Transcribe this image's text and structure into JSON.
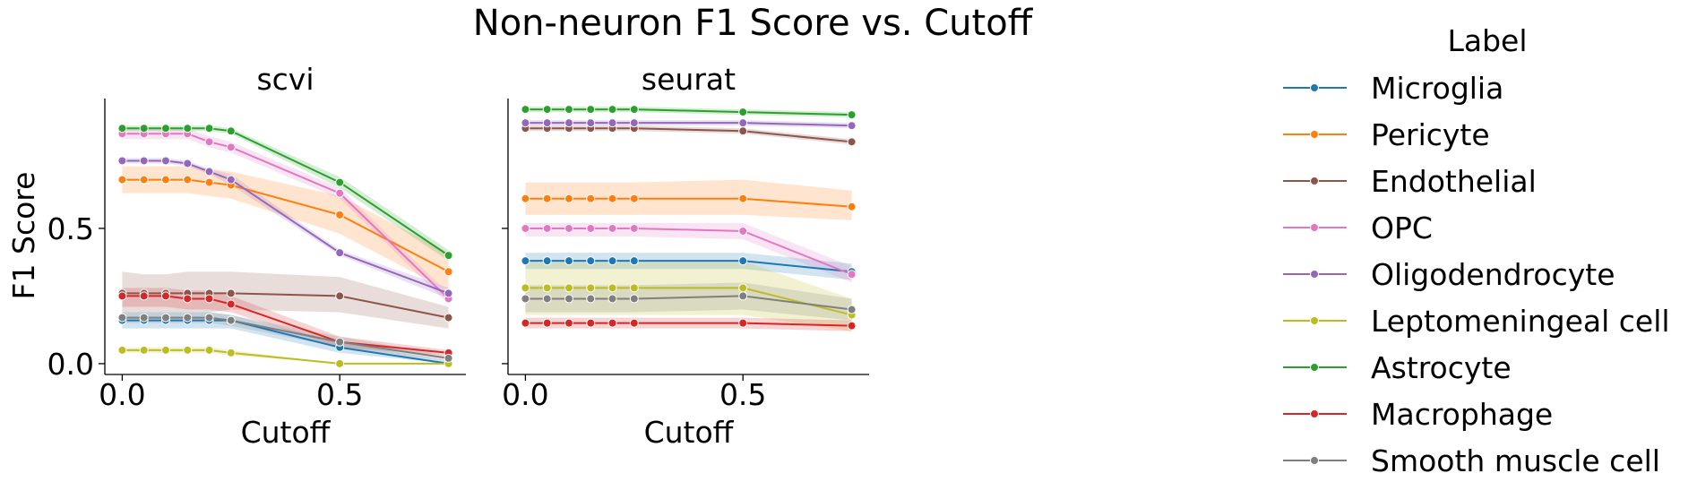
{
  "chart_data": {
    "type": "line",
    "title": "Non-neuron F1 Score vs. Cutoff",
    "ylabel": "F1 Score",
    "xlabel": "Cutoff",
    "xlim": [
      -0.04,
      0.79
    ],
    "ylim": [
      -0.04,
      0.98
    ],
    "xticks": [
      0.0,
      0.5
    ],
    "xtick_labels": [
      "0.0",
      "0.5"
    ],
    "yticks": [
      0.0,
      0.5
    ],
    "ytick_labels": [
      "0.0",
      "0.5"
    ],
    "legend": {
      "title": "Label",
      "placement": "right"
    },
    "series_colors": {
      "Microglia": "#1f77b4",
      "Pericyte": "#ff7f0e",
      "Endothelial": "#8c564b",
      "OPC": "#e377c2",
      "Oligodendrocyte": "#9467bd",
      "Leptomeningeal cell": "#bcbd22",
      "Astrocyte": "#2ca02c",
      "Macrophage": "#d62728",
      "Smooth muscle cell": "#7f7f7f"
    },
    "panels": [
      {
        "title": "scvi",
        "x": [
          0.0,
          0.05,
          0.1,
          0.15,
          0.2,
          0.25,
          0.5,
          0.75
        ],
        "series": [
          {
            "name": "Microglia",
            "values": [
              0.16,
              0.16,
              0.16,
              0.16,
              0.16,
              0.16,
              0.06,
              0.0
            ],
            "ci_lower": [
              0.13,
              0.13,
              0.13,
              0.13,
              0.13,
              0.13,
              0.04,
              0.0
            ],
            "ci_upper": [
              0.19,
              0.19,
              0.19,
              0.19,
              0.19,
              0.18,
              0.08,
              0.01
            ]
          },
          {
            "name": "Pericyte",
            "values": [
              0.68,
              0.68,
              0.68,
              0.68,
              0.67,
              0.66,
              0.55,
              0.34
            ],
            "ci_lower": [
              0.63,
              0.63,
              0.63,
              0.63,
              0.62,
              0.61,
              0.48,
              0.27
            ],
            "ci_upper": [
              0.73,
              0.73,
              0.73,
              0.73,
              0.72,
              0.71,
              0.62,
              0.41
            ]
          },
          {
            "name": "Endothelial",
            "values": [
              0.26,
              0.26,
              0.26,
              0.26,
              0.26,
              0.26,
              0.25,
              0.17
            ],
            "ci_lower": [
              0.19,
              0.19,
              0.19,
              0.19,
              0.19,
              0.2,
              0.19,
              0.13
            ],
            "ci_upper": [
              0.34,
              0.33,
              0.33,
              0.34,
              0.34,
              0.34,
              0.32,
              0.21
            ]
          },
          {
            "name": "OPC",
            "values": [
              0.85,
              0.85,
              0.85,
              0.85,
              0.82,
              0.8,
              0.63,
              0.24
            ],
            "ci_lower": [
              0.83,
              0.83,
              0.83,
              0.83,
              0.8,
              0.78,
              0.61,
              0.22
            ],
            "ci_upper": [
              0.87,
              0.87,
              0.87,
              0.87,
              0.84,
              0.82,
              0.65,
              0.26
            ]
          },
          {
            "name": "Oligodendrocyte",
            "values": [
              0.75,
              0.75,
              0.75,
              0.74,
              0.71,
              0.68,
              0.41,
              0.26
            ],
            "ci_lower": [
              0.74,
              0.74,
              0.74,
              0.73,
              0.7,
              0.66,
              0.4,
              0.24
            ],
            "ci_upper": [
              0.76,
              0.76,
              0.76,
              0.75,
              0.72,
              0.7,
              0.42,
              0.28
            ]
          },
          {
            "name": "Leptomeningeal cell",
            "values": [
              0.05,
              0.05,
              0.05,
              0.05,
              0.05,
              0.04,
              0.0,
              0.0
            ],
            "ci_lower": [
              0.04,
              0.04,
              0.04,
              0.04,
              0.04,
              0.03,
              0.0,
              0.0
            ],
            "ci_upper": [
              0.06,
              0.06,
              0.06,
              0.06,
              0.06,
              0.05,
              0.0,
              0.0
            ]
          },
          {
            "name": "Astrocyte",
            "values": [
              0.87,
              0.87,
              0.87,
              0.87,
              0.87,
              0.86,
              0.67,
              0.4
            ],
            "ci_lower": [
              0.86,
              0.86,
              0.86,
              0.86,
              0.86,
              0.85,
              0.65,
              0.38
            ],
            "ci_upper": [
              0.88,
              0.88,
              0.88,
              0.88,
              0.88,
              0.87,
              0.69,
              0.42
            ]
          },
          {
            "name": "Macrophage",
            "values": [
              0.25,
              0.25,
              0.25,
              0.24,
              0.24,
              0.22,
              0.08,
              0.04
            ],
            "ci_lower": [
              0.21,
              0.21,
              0.21,
              0.2,
              0.2,
              0.19,
              0.06,
              0.03
            ],
            "ci_upper": [
              0.28,
              0.28,
              0.28,
              0.27,
              0.27,
              0.25,
              0.1,
              0.05
            ]
          },
          {
            "name": "Smooth muscle cell",
            "values": [
              0.17,
              0.17,
              0.17,
              0.17,
              0.17,
              0.16,
              0.08,
              0.02
            ],
            "ci_lower": [
              0.15,
              0.15,
              0.15,
              0.15,
              0.15,
              0.14,
              0.06,
              0.01
            ],
            "ci_upper": [
              0.19,
              0.19,
              0.19,
              0.19,
              0.19,
              0.18,
              0.1,
              0.03
            ]
          }
        ]
      },
      {
        "title": "seurat",
        "x": [
          0.0,
          0.05,
          0.1,
          0.15,
          0.2,
          0.25,
          0.5,
          0.75
        ],
        "series": [
          {
            "name": "Microglia",
            "values": [
              0.38,
              0.38,
              0.38,
              0.38,
              0.38,
              0.38,
              0.38,
              0.34
            ],
            "ci_lower": [
              0.35,
              0.35,
              0.35,
              0.35,
              0.35,
              0.35,
              0.35,
              0.31
            ],
            "ci_upper": [
              0.41,
              0.41,
              0.41,
              0.41,
              0.41,
              0.41,
              0.41,
              0.37
            ]
          },
          {
            "name": "Pericyte",
            "values": [
              0.61,
              0.61,
              0.61,
              0.61,
              0.61,
              0.61,
              0.61,
              0.58
            ],
            "ci_lower": [
              0.55,
              0.55,
              0.55,
              0.55,
              0.55,
              0.55,
              0.55,
              0.53
            ],
            "ci_upper": [
              0.67,
              0.67,
              0.67,
              0.67,
              0.67,
              0.67,
              0.68,
              0.64
            ]
          },
          {
            "name": "Endothelial",
            "values": [
              0.87,
              0.87,
              0.87,
              0.87,
              0.87,
              0.87,
              0.86,
              0.82
            ],
            "ci_lower": [
              0.86,
              0.86,
              0.86,
              0.86,
              0.86,
              0.86,
              0.85,
              0.81
            ],
            "ci_upper": [
              0.88,
              0.88,
              0.88,
              0.88,
              0.88,
              0.88,
              0.87,
              0.83
            ]
          },
          {
            "name": "OPC",
            "values": [
              0.5,
              0.5,
              0.5,
              0.5,
              0.5,
              0.5,
              0.49,
              0.33
            ],
            "ci_lower": [
              0.47,
              0.47,
              0.47,
              0.47,
              0.47,
              0.47,
              0.46,
              0.3
            ],
            "ci_upper": [
              0.52,
              0.52,
              0.52,
              0.52,
              0.52,
              0.52,
              0.52,
              0.36
            ]
          },
          {
            "name": "Oligodendrocyte",
            "values": [
              0.89,
              0.89,
              0.89,
              0.89,
              0.89,
              0.89,
              0.89,
              0.88
            ],
            "ci_lower": [
              0.88,
              0.88,
              0.88,
              0.88,
              0.88,
              0.88,
              0.88,
              0.87
            ],
            "ci_upper": [
              0.9,
              0.9,
              0.9,
              0.9,
              0.9,
              0.9,
              0.9,
              0.89
            ]
          },
          {
            "name": "Leptomeningeal cell",
            "values": [
              0.28,
              0.28,
              0.28,
              0.28,
              0.28,
              0.28,
              0.28,
              0.18
            ],
            "ci_lower": [
              0.18,
              0.18,
              0.18,
              0.18,
              0.18,
              0.18,
              0.18,
              0.12
            ],
            "ci_upper": [
              0.38,
              0.38,
              0.38,
              0.38,
              0.38,
              0.38,
              0.38,
              0.24
            ]
          },
          {
            "name": "Astrocyte",
            "values": [
              0.94,
              0.94,
              0.94,
              0.94,
              0.94,
              0.94,
              0.93,
              0.92
            ],
            "ci_lower": [
              0.93,
              0.93,
              0.93,
              0.93,
              0.93,
              0.93,
              0.92,
              0.91
            ],
            "ci_upper": [
              0.95,
              0.95,
              0.95,
              0.95,
              0.95,
              0.95,
              0.94,
              0.93
            ]
          },
          {
            "name": "Macrophage",
            "values": [
              0.15,
              0.15,
              0.15,
              0.15,
              0.15,
              0.15,
              0.15,
              0.14
            ],
            "ci_lower": [
              0.13,
              0.13,
              0.13,
              0.13,
              0.13,
              0.13,
              0.13,
              0.12
            ],
            "ci_upper": [
              0.17,
              0.17,
              0.17,
              0.17,
              0.17,
              0.17,
              0.17,
              0.16
            ]
          },
          {
            "name": "Smooth muscle cell",
            "values": [
              0.24,
              0.24,
              0.24,
              0.24,
              0.24,
              0.24,
              0.25,
              0.2
            ],
            "ci_lower": [
              0.19,
              0.19,
              0.19,
              0.19,
              0.19,
              0.19,
              0.2,
              0.16
            ],
            "ci_upper": [
              0.29,
              0.29,
              0.29,
              0.29,
              0.29,
              0.29,
              0.3,
              0.24
            ]
          }
        ]
      }
    ]
  }
}
